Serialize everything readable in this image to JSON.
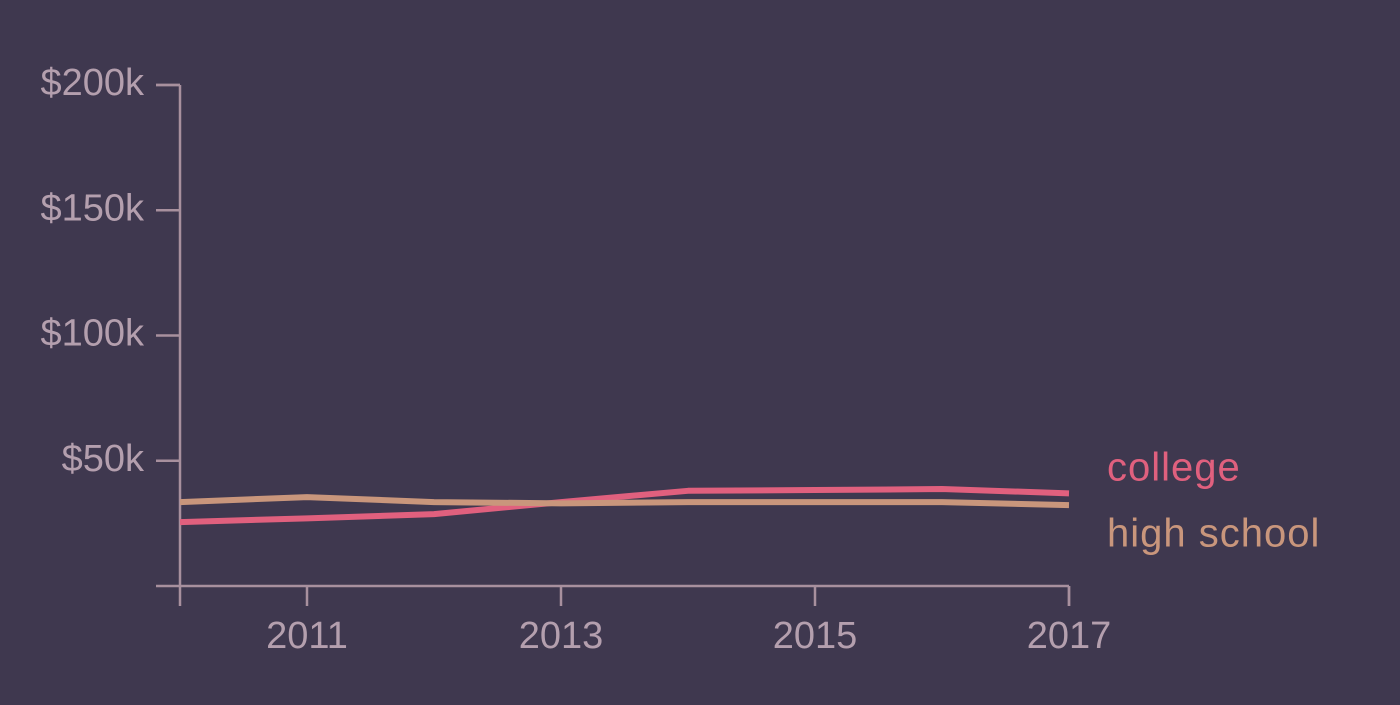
{
  "chart_data": {
    "type": "line",
    "x": [
      2010,
      2011,
      2012,
      2013,
      2014,
      2015,
      2016,
      2017
    ],
    "series": [
      {
        "name": "college",
        "color": "#e0607e",
        "values": [
          25500,
          27000,
          28700,
          33500,
          38000,
          38300,
          38700,
          37000
        ]
      },
      {
        "name": "high school",
        "color": "#c9967c",
        "values": [
          33500,
          35500,
          33500,
          33000,
          33500,
          33500,
          33500,
          32300
        ]
      }
    ],
    "xlim": [
      2010,
      2017
    ],
    "xticks": [
      2011,
      2013,
      2015,
      2017
    ],
    "ylim": [
      0,
      200000
    ],
    "yticks": [
      {
        "value": 50000,
        "label": "$50k"
      },
      {
        "value": 100000,
        "label": "$100k"
      },
      {
        "value": 150000,
        "label": "$150k"
      },
      {
        "value": 200000,
        "label": "$200k"
      }
    ],
    "grid": false
  }
}
